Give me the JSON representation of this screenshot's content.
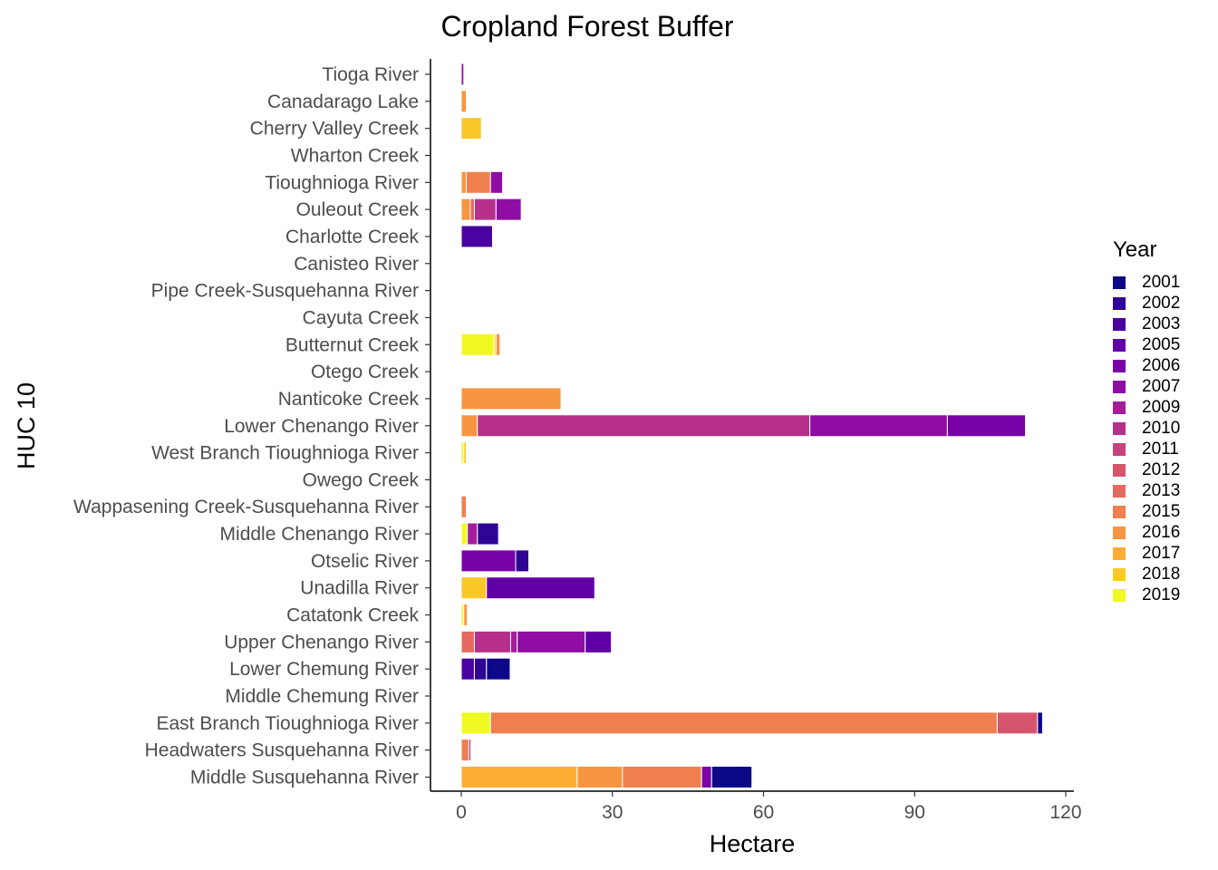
{
  "chart_data": {
    "type": "bar",
    "orientation": "horizontal",
    "stacked": true,
    "title": "Cropland Forest Buffer",
    "xlabel": "Hectare",
    "ylabel": "HUC 10",
    "xlim": [
      -6,
      126
    ],
    "xticks": [
      0,
      30,
      60,
      90,
      120
    ],
    "grid": false,
    "legend_title": "Year",
    "legend_position": "right",
    "categories": [
      "Tioga River",
      "Canadarago Lake",
      "Cherry Valley Creek",
      "Wharton Creek",
      "Tioughnioga River",
      "Ouleout Creek",
      "Charlotte Creek",
      "Canisteo River",
      "Pipe Creek-Susquehanna River",
      "Cayuta Creek",
      "Butternut Creek",
      "Otego Creek",
      "Nanticoke Creek",
      "Lower Chenango River",
      "West Branch Tioughnioga River",
      "Owego Creek",
      "Wappasening Creek-Susquehanna River",
      "Middle Chenango River",
      "Otselic River",
      "Unadilla River",
      "Catatonk Creek",
      "Upper Chenango River",
      "Lower Chemung River",
      "Middle Chemung River",
      "East Branch Tioughnioga River",
      "Headwaters Susquehanna River",
      "Middle Susquehanna River"
    ],
    "years": [
      "2019",
      "2018",
      "2017",
      "2016",
      "2015",
      "2013",
      "2012",
      "2011",
      "2010",
      "2009",
      "2007",
      "2006",
      "2005",
      "2003",
      "2002",
      "2001"
    ],
    "colors": {
      "2001": "#0D0887",
      "2002": "#2F0596",
      "2003": "#4903A0",
      "2005": "#6100A7",
      "2006": "#7801A8",
      "2007": "#8F0DA4",
      "2009": "#A41E9A",
      "2010": "#B6308B",
      "2011": "#C7427C",
      "2012": "#D6556D",
      "2013": "#E4695E",
      "2015": "#F07F4F",
      "2016": "#F89540",
      "2017": "#FDAE32",
      "2018": "#FCC729",
      "2019": "#F0F921"
    },
    "bars": {
      "Tioga River": [
        {
          "year": "2007",
          "value": 0.5
        }
      ],
      "Canadarago Lake": [
        {
          "year": "2016",
          "value": 1.0
        }
      ],
      "Cherry Valley Creek": [
        {
          "year": "2018",
          "value": 4.0
        }
      ],
      "Wharton Creek": [],
      "Tioughnioga River": [
        {
          "year": "2016",
          "value": 1.0
        },
        {
          "year": "2015",
          "value": 4.8
        },
        {
          "year": "2007",
          "value": 2.4
        }
      ],
      "Ouleout Creek": [
        {
          "year": "2016",
          "value": 1.8
        },
        {
          "year": "2013",
          "value": 0.8
        },
        {
          "year": "2010",
          "value": 4.3
        },
        {
          "year": "2007",
          "value": 5.0
        }
      ],
      "Charlotte Creek": [
        {
          "year": "2003",
          "value": 6.2
        }
      ],
      "Canisteo River": [],
      "Pipe Creek-Susquehanna River": [],
      "Cayuta Creek": [],
      "Butternut Creek": [
        {
          "year": "2019",
          "value": 6.5
        },
        {
          "year": "2018",
          "value": 0.4
        },
        {
          "year": "2016",
          "value": 0.8
        }
      ],
      "Otego Creek": [],
      "Nanticoke Creek": [
        {
          "year": "2016",
          "value": 19.8
        }
      ],
      "Lower Chenango River": [
        {
          "year": "2016",
          "value": 3.2
        },
        {
          "year": "2010",
          "value": 66.0
        },
        {
          "year": "2007",
          "value": 27.3
        },
        {
          "year": "2006",
          "value": 15.5
        }
      ],
      "West Branch Tioughnioga River": [
        {
          "year": "2019",
          "value": 0.5
        },
        {
          "year": "2018",
          "value": 0.5
        }
      ],
      "Owego Creek": [],
      "Wappasening Creek-Susquehanna River": [
        {
          "year": "2015",
          "value": 1.0
        }
      ],
      "Middle Chenango River": [
        {
          "year": "2019",
          "value": 1.2
        },
        {
          "year": "2009",
          "value": 2.0
        },
        {
          "year": "2002",
          "value": 4.2
        }
      ],
      "Otselic River": [
        {
          "year": "2006",
          "value": 10.8
        },
        {
          "year": "2002",
          "value": 2.6
        }
      ],
      "Unadilla River": [
        {
          "year": "2018",
          "value": 5.0
        },
        {
          "year": "2005",
          "value": 21.5
        }
      ],
      "Catatonk Creek": [
        {
          "year": "2019",
          "value": 0.5
        },
        {
          "year": "2016",
          "value": 0.7
        }
      ],
      "Upper Chenango River": [
        {
          "year": "2013",
          "value": 2.6
        },
        {
          "year": "2010",
          "value": 7.2
        },
        {
          "year": "2009",
          "value": 1.3
        },
        {
          "year": "2007",
          "value": 13.5
        },
        {
          "year": "2005",
          "value": 5.2
        }
      ],
      "Lower Chemung River": [
        {
          "year": "2003",
          "value": 2.6
        },
        {
          "year": "2002",
          "value": 2.4
        },
        {
          "year": "2001",
          "value": 4.7
        }
      ],
      "Middle Chemung River": [],
      "East Branch Tioughnioga River": [
        {
          "year": "2019",
          "value": 5.8
        },
        {
          "year": "2015",
          "value": 100.6
        },
        {
          "year": "2012",
          "value": 8.0
        },
        {
          "year": "2001",
          "value": 1.0
        }
      ],
      "Headwaters Susquehanna River": [
        {
          "year": "2015",
          "value": 1.5
        },
        {
          "year": "2010",
          "value": 0.4
        }
      ],
      "Middle Susquehanna River": [
        {
          "year": "2017",
          "value": 23.0
        },
        {
          "year": "2016",
          "value": 9.0
        },
        {
          "year": "2015",
          "value": 15.7
        },
        {
          "year": "2006",
          "value": 2.0
        },
        {
          "year": "2001",
          "value": 8.0
        }
      ]
    },
    "legend_order": [
      "2001",
      "2002",
      "2003",
      "2005",
      "2006",
      "2007",
      "2009",
      "2010",
      "2011",
      "2012",
      "2013",
      "2015",
      "2016",
      "2017",
      "2018",
      "2019"
    ]
  }
}
